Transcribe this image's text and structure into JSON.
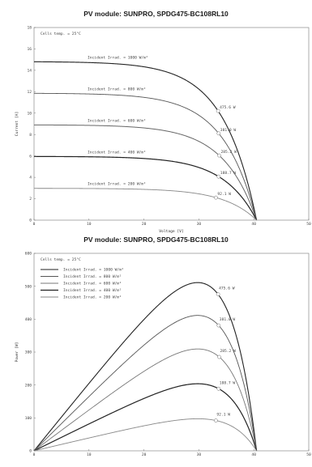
{
  "chart_data": [
    {
      "type": "line",
      "title": "PV module:  SUNPRO,  SPDG475-BC108RL10",
      "note": "Cells temp. = 25°C",
      "xlabel": "Voltage [V]",
      "ylabel": "Current [A]",
      "xlim": [
        0,
        50
      ],
      "ylim": [
        0,
        18
      ],
      "xticks": [
        "0",
        "10",
        "20",
        "30",
        "40",
        "50"
      ],
      "yticks": [
        "0",
        "2",
        "4",
        "6",
        "8",
        "10",
        "12",
        "14",
        "16",
        "18"
      ],
      "grid": false,
      "voc": 40.5,
      "series": [
        {
          "name": "Incident Irrad. = 1000 W/m²",
          "isc": 14.8,
          "vmp": 33.5,
          "mpp_label": "475.6 W",
          "stroke": "#222222",
          "width": 1.1
        },
        {
          "name": "Incident Irrad. = 800 W/m²",
          "isc": 11.85,
          "vmp": 33.6,
          "mpp_label": "381.0 W",
          "stroke": "#555555",
          "width": 0.9
        },
        {
          "name": "Incident Irrad. = 600 W/m²",
          "isc": 8.9,
          "vmp": 33.7,
          "mpp_label": "285.2 W",
          "stroke": "#666666",
          "width": 1.0
        },
        {
          "name": "Incident Irrad. = 400 W/m²",
          "isc": 5.95,
          "vmp": 33.6,
          "mpp_label": "188.7 W",
          "stroke": "#222222",
          "width": 1.2
        },
        {
          "name": "Incident Irrad. = 200 W/m²",
          "isc": 2.97,
          "vmp": 33.1,
          "mpp_label": "92.1 W",
          "stroke": "#888888",
          "width": 0.9
        }
      ]
    },
    {
      "type": "line",
      "title": "PV module:  SUNPRO,  SPDG475-BC108RL10",
      "note": "Cells temp. = 25°C",
      "xlabel": "",
      "ylabel": "Power [W]",
      "xlim": [
        0,
        50
      ],
      "ylim": [
        0,
        600
      ],
      "xticks": [
        "0",
        "10",
        "20",
        "30",
        "40",
        "50"
      ],
      "yticks": [
        "0",
        "100",
        "200",
        "300",
        "400",
        "500",
        "600"
      ],
      "grid": false,
      "legend": "top-left",
      "legend_entries": [
        "Incident Irrad. = 1000 W/m²",
        "Incident Irrad. = 800 W/m²",
        "Incident Irrad. = 600 W/m²",
        "Incident Irrad. = 400 W/m²",
        "Incident Irrad. = 200 W/m²"
      ],
      "series": [
        {
          "name": "Incident Irrad. = 1000 W/m²",
          "pmp": 475.6,
          "vmp": 33.5,
          "mpp_label": "475.6 W",
          "stroke": "#222222",
          "width": 1.1
        },
        {
          "name": "Incident Irrad. = 800 W/m²",
          "pmp": 381.0,
          "vmp": 33.6,
          "mpp_label": "381.0 W",
          "stroke": "#555555",
          "width": 0.9
        },
        {
          "name": "Incident Irrad. = 600 W/m²",
          "pmp": 285.2,
          "vmp": 33.7,
          "mpp_label": "285.2 W",
          "stroke": "#777777",
          "width": 0.9
        },
        {
          "name": "Incident Irrad. = 400 W/m²",
          "pmp": 188.7,
          "vmp": 33.6,
          "mpp_label": "188.7 W",
          "stroke": "#222222",
          "width": 1.2
        },
        {
          "name": "Incident Irrad. = 200 W/m²",
          "pmp": 92.1,
          "vmp": 33.1,
          "mpp_label": "92.1 W",
          "stroke": "#888888",
          "width": 0.9
        }
      ]
    }
  ]
}
